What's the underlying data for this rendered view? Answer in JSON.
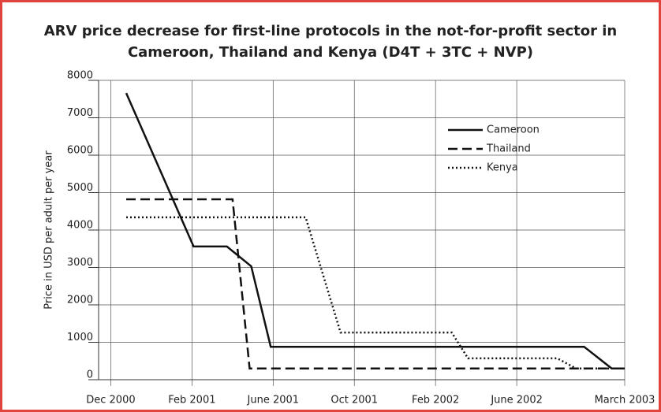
{
  "chart_data": {
    "type": "line",
    "title": [
      "ARV price decrease for first-line protocols in the not-for-profit sector in",
      "Cameroon, Thailand and Kenya (D4T + 3TC + NVP)"
    ],
    "y_label": "Price in USD per adult per year",
    "xlim": [
      -0.15,
      6.33
    ],
    "xticks": [
      {
        "value": 0,
        "label": "Dec 2000"
      },
      {
        "value": 1,
        "label": "Feb 2001"
      },
      {
        "value": 2,
        "label": "June 2001"
      },
      {
        "value": 3,
        "label": "Oct 2001"
      },
      {
        "value": 4,
        "label": "Feb 2002"
      },
      {
        "value": 5,
        "label": "June 2002"
      },
      {
        "value": 6.33,
        "label": "March 2003"
      }
    ],
    "ylim": [
      0,
      8000
    ],
    "yticks": [
      0,
      1000,
      2000,
      3000,
      4000,
      5000,
      6000,
      7000,
      8000
    ],
    "grid": true,
    "legend": "upper right",
    "series": [
      {
        "name": "Cameroon",
        "color": "#111111",
        "dash": "solid",
        "x": [
          0.19,
          1.02,
          1.43,
          1.73,
          1.97,
          5.83,
          6.17,
          6.33
        ],
        "values": [
          7660,
          3560,
          3560,
          3030,
          880,
          880,
          300,
          300
        ]
      },
      {
        "name": "Thailand",
        "color": "#111111",
        "dash": "dashed",
        "x": [
          0.19,
          1.5,
          1.71,
          6.33
        ],
        "values": [
          4820,
          4820,
          300,
          300
        ]
      },
      {
        "name": "Kenya",
        "color": "#111111",
        "dash": "dotted",
        "x": [
          0.19,
          2.4,
          2.83,
          4.2,
          4.4,
          5.5,
          5.73,
          6.33
        ],
        "values": [
          4340,
          4340,
          1260,
          1260,
          570,
          570,
          300,
          300
        ]
      }
    ]
  }
}
